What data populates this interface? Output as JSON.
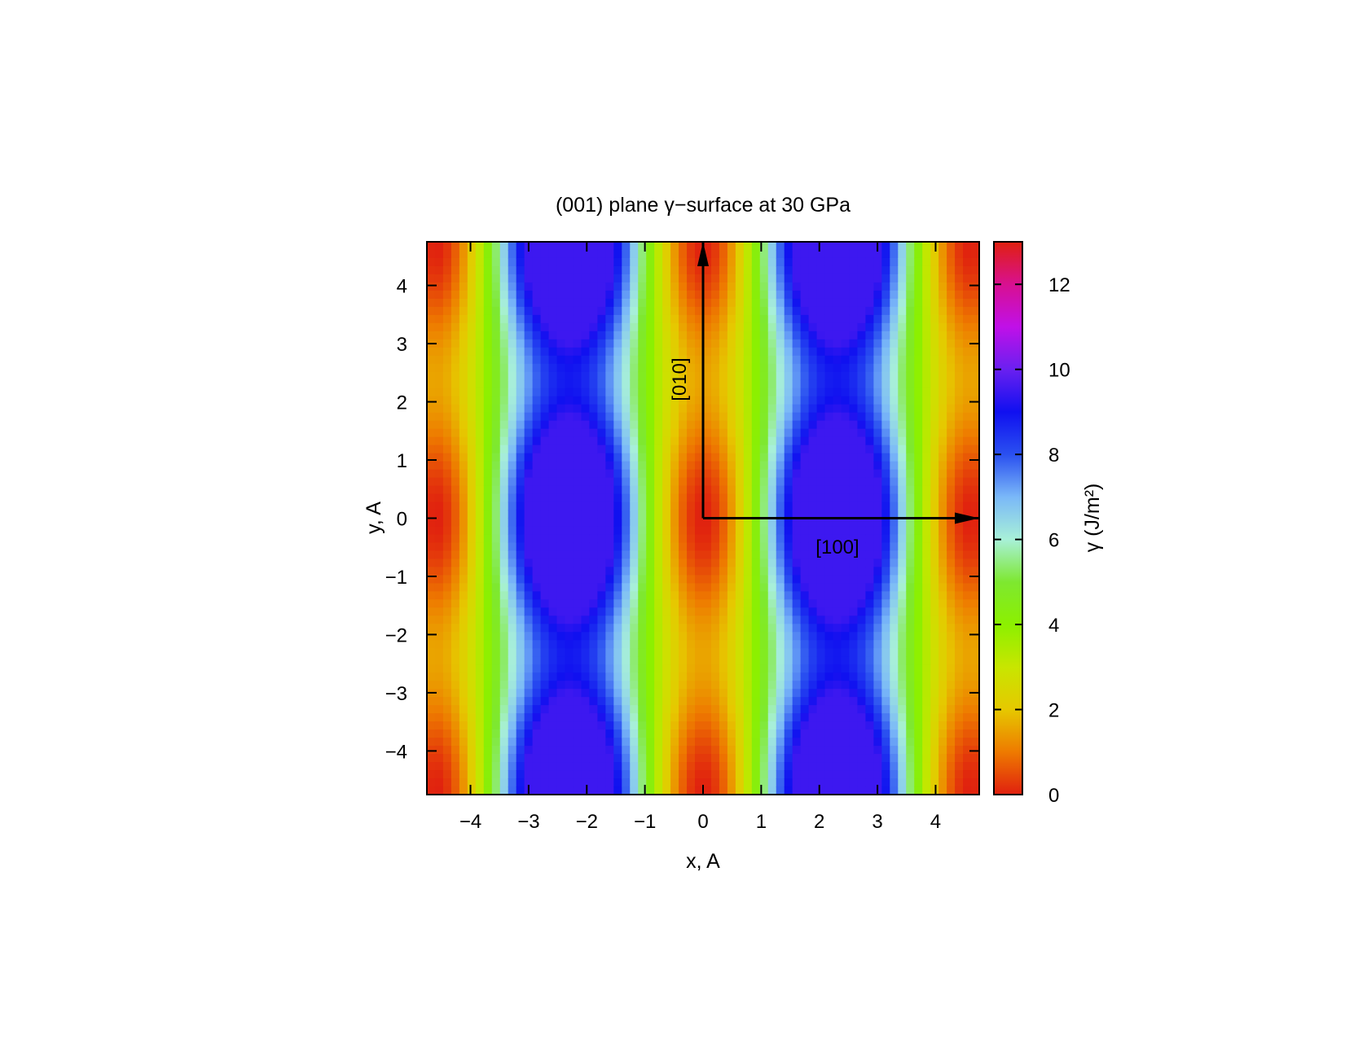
{
  "chart_data": {
    "type": "heatmap",
    "title": "(001) plane γ−surface at 30 GPa",
    "xlabel": "x, A",
    "ylabel": "y, A",
    "xlim": [
      -4.75,
      4.75
    ],
    "ylim": [
      -4.75,
      4.75
    ],
    "x_ticks": [
      "−4",
      "−3",
      "−2",
      "−1",
      "0",
      "1",
      "2",
      "3",
      "4"
    ],
    "y_ticks": [
      "−4",
      "−3",
      "−2",
      "−1",
      "0",
      "1",
      "2",
      "3",
      "4"
    ],
    "grid": false,
    "colorbar": {
      "label": "γ (J/m²)",
      "range": [
        0,
        13
      ],
      "ticks": [
        "0",
        "2",
        "4",
        "6",
        "8",
        "10",
        "12"
      ],
      "placement": "right",
      "colormap": [
        {
          "value": 0,
          "color": "#e0200f"
        },
        {
          "value": 1,
          "color": "#ee7a00"
        },
        {
          "value": 2,
          "color": "#e6c800"
        },
        {
          "value": 3,
          "color": "#c8e600"
        },
        {
          "value": 4,
          "color": "#8cf000"
        },
        {
          "value": 5,
          "color": "#7ee830"
        },
        {
          "value": 6,
          "color": "#a8f0d8"
        },
        {
          "value": 7,
          "color": "#7ab8f8"
        },
        {
          "value": 8,
          "color": "#2a50f0"
        },
        {
          "value": 9,
          "color": "#1010f0"
        },
        {
          "value": 10,
          "color": "#6a20f0"
        },
        {
          "value": 11,
          "color": "#c010e8"
        },
        {
          "value": 12,
          "color": "#d81090"
        },
        {
          "value": 13,
          "color": "#e0200f"
        }
      ]
    },
    "surface": {
      "description": "periodic gamma-surface",
      "period_x": 4.6,
      "period_y": 4.75,
      "minima_value": 0,
      "maxima_value": 9.5
    },
    "annotations": [
      {
        "text": "[010]",
        "arrow_from": [
          0,
          0
        ],
        "arrow_to": [
          0,
          4.75
        ]
      },
      {
        "text": "[100]",
        "arrow_from": [
          0,
          0
        ],
        "arrow_to": [
          4.75,
          0
        ]
      }
    ]
  }
}
